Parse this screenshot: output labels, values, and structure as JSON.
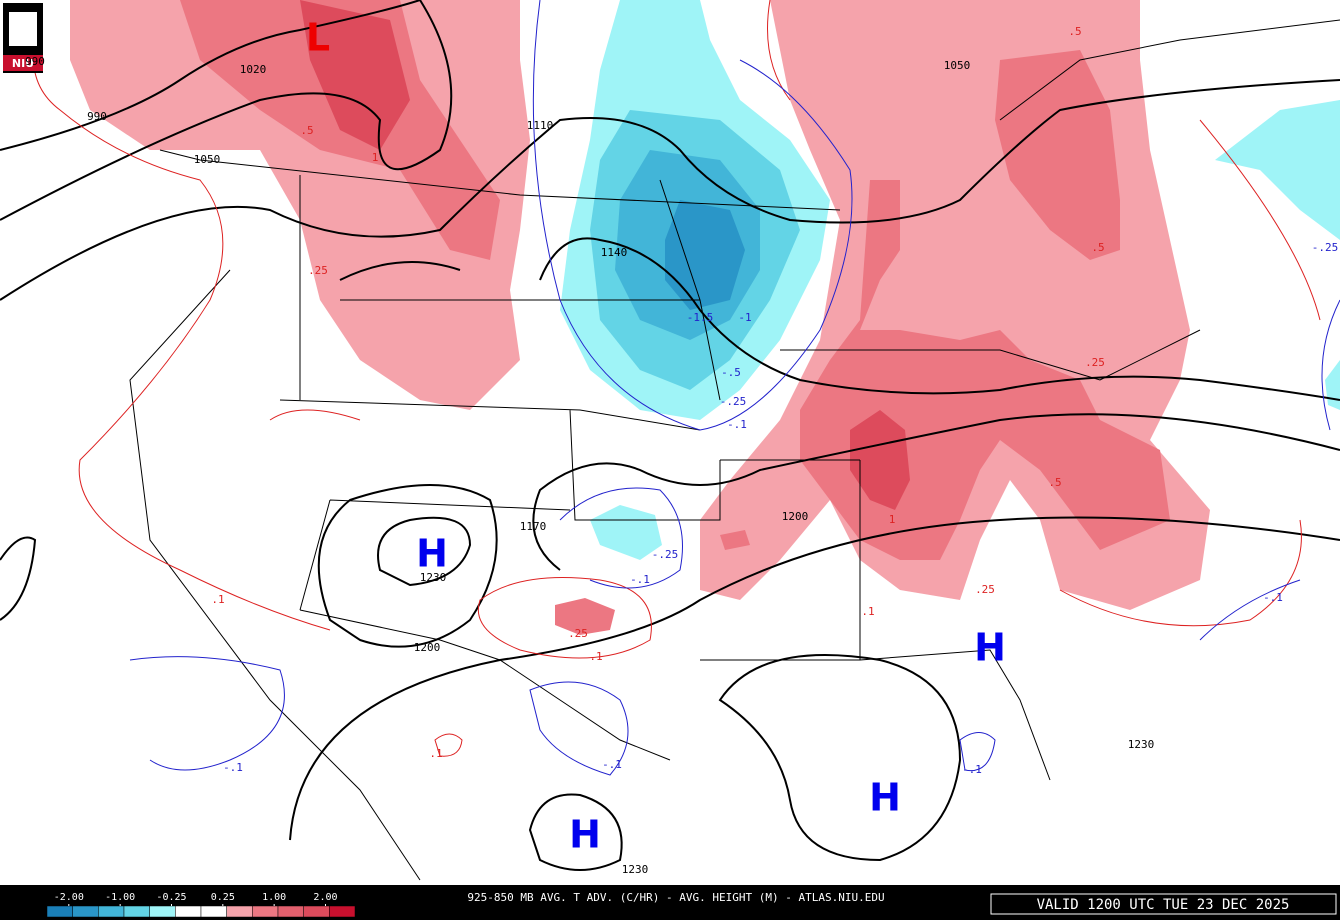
{
  "logo": "NIU",
  "colorbar": {
    "ticks": [
      {
        "value": -2,
        "label": "-2.00"
      },
      {
        "value": -1,
        "label": "-1.00"
      },
      {
        "value": -0.25,
        "label": "-0.25"
      },
      {
        "value": 0.25,
        "label": "0.25"
      },
      {
        "value": 1,
        "label": "1.00"
      },
      {
        "value": 2,
        "label": "2.00"
      }
    ]
  },
  "footer": {
    "title": "925-850 MB AVG. T ADV. (C/HR) - AVG. HEIGHT (M) - ATLAS.NIU.EDU",
    "valid": "VALID 1200 UTC TUE 23 DEC 2025"
  },
  "lows": [
    "L"
  ],
  "highs": [
    "H",
    "H",
    "H",
    "H"
  ],
  "height_labels": [
    "990",
    "1020",
    "990",
    "1050",
    "1110",
    "1140",
    "1050",
    "1170",
    "1200",
    "1230",
    "1200",
    "1230",
    "1230"
  ],
  "warm_labels": [
    ".5",
    "1",
    ".25",
    ".5",
    ".5",
    ".25",
    ".5",
    "1",
    ".25",
    ".1",
    ".25",
    ".1",
    ".1",
    ".1"
  ],
  "cold_labels": [
    "-1.5",
    "-1",
    "-.5",
    "-.25",
    "-.1",
    "-.25",
    "-.1",
    "-.1",
    "-.1",
    "-.1",
    "-.1",
    "-.25"
  ]
}
